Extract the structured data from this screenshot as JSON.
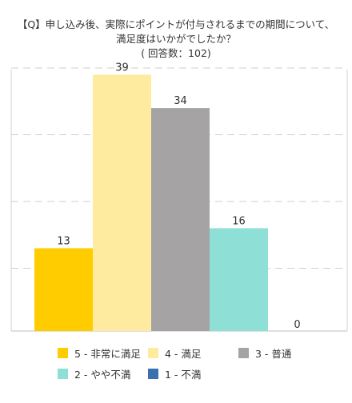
{
  "chart_data": {
    "type": "bar",
    "title_lines": [
      "【Q】申し込み後、実際にポイントが付与されるまでの期間について、",
      "満足度はいかがでしたか？",
      "( 回答数：102)"
    ],
    "series": [
      {
        "name": "5 - 非常に満足",
        "value": 13,
        "color": "#ffcc00"
      },
      {
        "name": "4 - 満足",
        "value": 39,
        "color": "#ffeba0"
      },
      {
        "name": "3 - 普通",
        "value": 34,
        "color": "#a5a3a4"
      },
      {
        "name": "2 - やや不満",
        "value": 16,
        "color": "#8ee0d6"
      },
      {
        "name": "1 - 不満",
        "value": 0,
        "color": "#3a6fb0"
      }
    ],
    "ylim": [
      0,
      40
    ],
    "grid": true,
    "legend_position": "bottom"
  }
}
